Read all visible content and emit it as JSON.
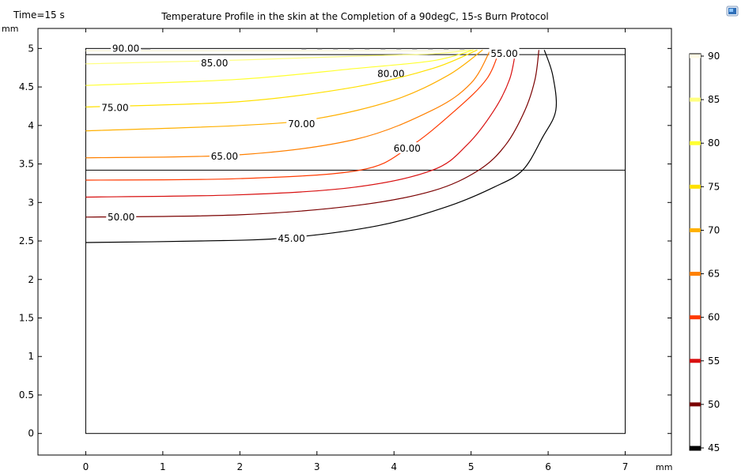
{
  "header": {
    "time_label": "Time=15 s",
    "title": "Temperature Profile in the skin at the Completion of a 90degC, 15-s Burn Protocol",
    "app_icon": "display-icon"
  },
  "chart_data": {
    "type": "contour",
    "title": "Temperature Profile in the skin at the Completion of a 90degC, 15-s Burn Protocol",
    "xlabel": "mm",
    "ylabel": "mm",
    "xlim": [
      -0.62,
      7.6
    ],
    "ylim": [
      -0.28,
      5.26
    ],
    "x_ticks": [
      "0",
      "1",
      "2",
      "3",
      "4",
      "5",
      "6",
      "7"
    ],
    "y_ticks": [
      "0",
      "0.5",
      "1",
      "1.5",
      "2",
      "2.5",
      "3",
      "3.5",
      "4",
      "4.5",
      "5"
    ],
    "grid": false,
    "domain_rect": {
      "x": [
        0,
        7
      ],
      "y": [
        0,
        5
      ]
    },
    "layer_boundaries_y": [
      4.92,
      3.42
    ],
    "contour_levels": [
      {
        "value": 90,
        "label": "90.00",
        "color": "#fffbe6",
        "start_y": 4.97,
        "path": [
          [
            0,
            4.97
          ],
          [
            3,
            4.97
          ],
          [
            4.5,
            4.97
          ],
          [
            5,
            4.98
          ]
        ],
        "label_pos": [
          0.52,
          5.0
        ]
      },
      {
        "value": 85,
        "label": "85.00",
        "color": "#ffff80",
        "start_y": 4.8,
        "path": [
          [
            0,
            4.8
          ],
          [
            2,
            4.85
          ],
          [
            3.5,
            4.9
          ],
          [
            4.5,
            4.93
          ],
          [
            5,
            4.98
          ]
        ],
        "label_pos": [
          1.67,
          4.81
        ]
      },
      {
        "value": 80,
        "label": "80.00",
        "color": "#ffff30",
        "start_y": 4.52,
        "path": [
          [
            0,
            4.52
          ],
          [
            2,
            4.6
          ],
          [
            3.5,
            4.74
          ],
          [
            4.5,
            4.84
          ],
          [
            5.03,
            4.98
          ]
        ],
        "label_pos": [
          3.96,
          4.67
        ]
      },
      {
        "value": 75,
        "label": "75.00",
        "color": "#ffe000",
        "start_y": 4.24,
        "path": [
          [
            0,
            4.24
          ],
          [
            2,
            4.31
          ],
          [
            3.5,
            4.5
          ],
          [
            4.5,
            4.74
          ],
          [
            5.08,
            4.98
          ]
        ],
        "label_pos": [
          0.38,
          4.23
        ]
      },
      {
        "value": 70,
        "label": "70.00",
        "color": "#ffb000",
        "start_y": 3.93,
        "path": [
          [
            0,
            3.93
          ],
          [
            2,
            4.0
          ],
          [
            3,
            4.09
          ],
          [
            4,
            4.33
          ],
          [
            4.7,
            4.65
          ],
          [
            5.15,
            4.98
          ]
        ],
        "label_pos": [
          2.8,
          4.02
        ]
      },
      {
        "value": 65,
        "label": "65.00",
        "color": "#ff8000",
        "start_y": 3.58,
        "path": [
          [
            0,
            3.58
          ],
          [
            2,
            3.62
          ],
          [
            3.5,
            3.82
          ],
          [
            4.5,
            4.2
          ],
          [
            5.0,
            4.55
          ],
          [
            5.25,
            4.98
          ]
        ],
        "label_pos": [
          1.8,
          3.6
        ]
      },
      {
        "value": 60,
        "label": "60.00",
        "color": "#ff3a00",
        "start_y": 3.29,
        "path": [
          [
            0,
            3.29
          ],
          [
            2,
            3.31
          ],
          [
            3.56,
            3.42
          ],
          [
            4.2,
            3.72
          ],
          [
            4.8,
            4.2
          ],
          [
            5.2,
            4.6
          ],
          [
            5.37,
            4.98
          ]
        ],
        "label_pos": [
          4.17,
          3.7
        ]
      },
      {
        "value": 55,
        "label": "55.00",
        "color": "#d81010",
        "start_y": 3.07,
        "path": [
          [
            0,
            3.07
          ],
          [
            2,
            3.1
          ],
          [
            3.5,
            3.2
          ],
          [
            4.5,
            3.42
          ],
          [
            4.95,
            3.75
          ],
          [
            5.3,
            4.2
          ],
          [
            5.5,
            4.6
          ],
          [
            5.58,
            4.98
          ]
        ],
        "label_pos": [
          5.43,
          4.93
        ]
      },
      {
        "value": 50,
        "label": "50.00",
        "color": "#7a0000",
        "start_y": 2.81,
        "path": [
          [
            0,
            2.81
          ],
          [
            2,
            2.84
          ],
          [
            3.5,
            2.96
          ],
          [
            4.5,
            3.15
          ],
          [
            5.1,
            3.42
          ],
          [
            5.45,
            3.75
          ],
          [
            5.7,
            4.2
          ],
          [
            5.83,
            4.6
          ],
          [
            5.88,
            4.98
          ]
        ],
        "label_pos": [
          0.46,
          2.81
        ]
      },
      {
        "value": 45,
        "label": "45.00",
        "color": "#000000",
        "start_y": 2.48,
        "path": [
          [
            0,
            2.48
          ],
          [
            1.5,
            2.5
          ],
          [
            2.6,
            2.54
          ],
          [
            3.8,
            2.7
          ],
          [
            4.7,
            2.95
          ],
          [
            5.3,
            3.2
          ],
          [
            5.67,
            3.42
          ],
          [
            5.93,
            3.85
          ],
          [
            6.1,
            4.2
          ],
          [
            6.06,
            4.65
          ],
          [
            5.95,
            4.98
          ]
        ],
        "label_pos": [
          2.67,
          2.53
        ]
      }
    ],
    "colorbar": {
      "ticks": [
        "90",
        "85",
        "80",
        "75",
        "70",
        "65",
        "60",
        "55",
        "50",
        "45"
      ],
      "colors": [
        "#fffbe6",
        "#ffff80",
        "#ffff30",
        "#ffe000",
        "#ffb000",
        "#ff8000",
        "#ff3a00",
        "#d81010",
        "#7a0000",
        "#000000"
      ]
    }
  }
}
